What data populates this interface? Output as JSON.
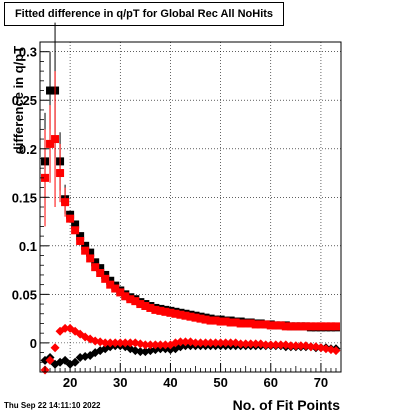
{
  "chart_data": {
    "type": "scatter",
    "title": "Fitted difference in q/pT for Global Rec All NoHits",
    "xlabel": "No. of Fit Points",
    "ylabel": "difference in q/pT",
    "xlim": [
      14,
      74
    ],
    "ylim": [
      -0.03,
      0.31
    ],
    "xticks": [
      "20",
      "30",
      "40",
      "50",
      "60",
      "70"
    ],
    "yticks": [
      "0",
      "0.05",
      "0.1",
      "0.15",
      "0.2",
      "0.25",
      "0.3"
    ],
    "grid": true,
    "series": [
      {
        "marker": "square",
        "color": "#000000",
        "x": [
          15,
          16,
          17,
          18,
          19,
          20,
          21,
          22,
          23,
          24,
          25,
          26,
          27,
          28,
          29,
          30,
          31,
          32,
          33,
          34,
          35,
          36,
          37,
          38,
          39,
          40,
          41,
          42,
          43,
          44,
          45,
          46,
          47,
          48,
          49,
          50,
          51,
          52,
          53,
          54,
          55,
          56,
          57,
          58,
          59,
          60,
          61,
          62,
          63,
          64,
          65,
          66,
          67,
          68,
          69,
          70,
          71,
          72,
          73
        ],
        "y": [
          0.187,
          0.26,
          0.26,
          0.187,
          0.148,
          0.132,
          0.122,
          0.11,
          0.1,
          0.093,
          0.083,
          0.077,
          0.07,
          0.064,
          0.059,
          0.054,
          0.05,
          0.047,
          0.045,
          0.042,
          0.04,
          0.038,
          0.036,
          0.035,
          0.034,
          0.033,
          0.032,
          0.031,
          0.03,
          0.029,
          0.028,
          0.027,
          0.026,
          0.025,
          0.024,
          0.024,
          0.023,
          0.023,
          0.022,
          0.022,
          0.021,
          0.021,
          0.02,
          0.02,
          0.019,
          0.019,
          0.018,
          0.018,
          0.018,
          0.017,
          0.017,
          0.017,
          0.017,
          0.016,
          0.016,
          0.016,
          0.016,
          0.016,
          0.016
        ]
      },
      {
        "marker": "square",
        "color": "#ff0000",
        "x": [
          15,
          16,
          17,
          18,
          19,
          20,
          21,
          22,
          23,
          24,
          25,
          26,
          27,
          28,
          29,
          30,
          31,
          32,
          33,
          34,
          35,
          36,
          37,
          38,
          39,
          40,
          41,
          42,
          43,
          44,
          45,
          46,
          47,
          48,
          49,
          50,
          51,
          52,
          53,
          54,
          55,
          56,
          57,
          58,
          59,
          60,
          61,
          62,
          63,
          64,
          65,
          66,
          67,
          68,
          69,
          70,
          71,
          72,
          73
        ],
        "y": [
          0.17,
          0.205,
          0.21,
          0.175,
          0.145,
          0.128,
          0.116,
          0.105,
          0.095,
          0.087,
          0.078,
          0.072,
          0.066,
          0.06,
          0.056,
          0.052,
          0.048,
          0.045,
          0.043,
          0.04,
          0.038,
          0.036,
          0.034,
          0.033,
          0.032,
          0.031,
          0.03,
          0.029,
          0.028,
          0.027,
          0.026,
          0.025,
          0.024,
          0.023,
          0.023,
          0.022,
          0.022,
          0.021,
          0.021,
          0.02,
          0.02,
          0.02,
          0.019,
          0.019,
          0.019,
          0.018,
          0.018,
          0.018,
          0.017,
          0.017,
          0.017,
          0.017,
          0.017,
          0.017,
          0.017,
          0.017,
          0.017,
          0.017,
          0.017
        ]
      },
      {
        "marker": "diamond",
        "color": "#000000",
        "x": [
          15,
          16,
          17,
          18,
          19,
          20,
          21,
          22,
          23,
          24,
          25,
          26,
          27,
          28,
          29,
          30,
          31,
          32,
          33,
          34,
          35,
          36,
          37,
          38,
          39,
          40,
          41,
          42,
          43,
          44,
          45,
          46,
          47,
          48,
          49,
          50,
          51,
          52,
          53,
          54,
          55,
          56,
          57,
          58,
          59,
          60,
          61,
          62,
          63,
          64,
          65,
          66,
          67,
          68,
          69,
          70,
          71,
          72,
          73
        ],
        "y": [
          -0.018,
          -0.015,
          -0.022,
          -0.02,
          -0.018,
          -0.022,
          -0.02,
          -0.015,
          -0.014,
          -0.013,
          -0.01,
          -0.008,
          -0.006,
          -0.004,
          -0.003,
          -0.003,
          -0.004,
          -0.006,
          -0.008,
          -0.009,
          -0.009,
          -0.008,
          -0.007,
          -0.006,
          -0.006,
          -0.007,
          -0.006,
          -0.004,
          -0.003,
          -0.003,
          -0.003,
          -0.003,
          -0.003,
          -0.003,
          -0.003,
          -0.003,
          -0.003,
          -0.003,
          -0.003,
          -0.003,
          -0.003,
          -0.003,
          -0.003,
          -0.003,
          -0.003,
          -0.003,
          -0.003,
          -0.003,
          -0.004,
          -0.004,
          -0.004,
          -0.004,
          -0.004,
          -0.004,
          -0.005,
          -0.005,
          -0.005,
          -0.006,
          -0.006
        ]
      },
      {
        "marker": "diamond",
        "color": "#ff0000",
        "x": [
          15,
          16,
          17,
          18,
          19,
          20,
          21,
          22,
          23,
          24,
          25,
          26,
          27,
          28,
          29,
          30,
          31,
          32,
          33,
          34,
          35,
          36,
          37,
          38,
          39,
          40,
          41,
          42,
          43,
          44,
          45,
          46,
          47,
          48,
          49,
          50,
          51,
          52,
          53,
          54,
          55,
          56,
          57,
          58,
          59,
          60,
          61,
          62,
          63,
          64,
          65,
          66,
          67,
          68,
          69,
          70,
          71,
          72,
          73
        ],
        "y": [
          -0.028,
          -0.018,
          -0.005,
          0.012,
          0.015,
          0.015,
          0.012,
          0.009,
          0.006,
          0.004,
          0.002,
          0.001,
          0.0,
          0.0,
          0.0,
          0.0,
          0.0,
          0.0,
          0.0,
          -0.001,
          -0.002,
          -0.002,
          -0.002,
          -0.002,
          -0.002,
          -0.002,
          0.0,
          0.001,
          0.001,
          0.001,
          0.0,
          0.0,
          0.0,
          0.0,
          0.0,
          0.0,
          0.0,
          0.0,
          0.0,
          -0.001,
          -0.001,
          -0.001,
          -0.001,
          -0.001,
          -0.002,
          -0.002,
          -0.002,
          -0.002,
          -0.002,
          -0.003,
          -0.003,
          -0.003,
          -0.003,
          -0.004,
          -0.004,
          -0.005,
          -0.006,
          -0.007,
          -0.008
        ]
      }
    ]
  },
  "footer": {
    "timestamp": "Thu Sep 22 14:11:10 2022"
  }
}
